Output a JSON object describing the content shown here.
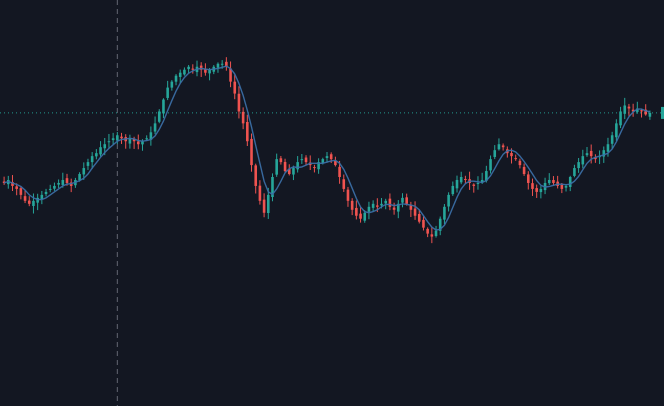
{
  "chart_data": {
    "type": "candlestick",
    "title": "",
    "xlabel": "",
    "ylabel": "",
    "grid": false,
    "colors": {
      "background": "#131722",
      "up": "#26a69a",
      "down": "#ef5350",
      "ma_line": "#3a6ea5",
      "crosshair": "#787b86",
      "price_line": "#26a69a"
    },
    "ylim": [
      0,
      100
    ],
    "overlay": "moving-average",
    "crosshair_index": 27,
    "last_price": 71.5,
    "closes": [
      48,
      49,
      47,
      46,
      44,
      42,
      41,
      42,
      43,
      44,
      45,
      46,
      47,
      48,
      49,
      48,
      47,
      49,
      51,
      53,
      55,
      57,
      58,
      60,
      61,
      62,
      63,
      64,
      63,
      62,
      63,
      62,
      61,
      62,
      63,
      65,
      68,
      72,
      76,
      80,
      82,
      84,
      85,
      86,
      87,
      86,
      87,
      86,
      85,
      86,
      87,
      88,
      88,
      87,
      82,
      78,
      72,
      68,
      62,
      54,
      47,
      42,
      38,
      44,
      50,
      56,
      55,
      52,
      51,
      53,
      55,
      56,
      55,
      54,
      53,
      55,
      56,
      57,
      56,
      54,
      50,
      46,
      42,
      39,
      37,
      36,
      38,
      40,
      41,
      40,
      41,
      42,
      40,
      39,
      41,
      43,
      41,
      39,
      37,
      35,
      33,
      31,
      30,
      32,
      36,
      40,
      44,
      47,
      49,
      50,
      49,
      48,
      47,
      48,
      49,
      52,
      56,
      59,
      61,
      60,
      58,
      57,
      56,
      54,
      51,
      48,
      46,
      45,
      46,
      48,
      49,
      48,
      47,
      46,
      47,
      50,
      53,
      55,
      57,
      58,
      57,
      56,
      57,
      59,
      61,
      64,
      68,
      72,
      74,
      73,
      72,
      73,
      72,
      71,
      71.5
    ]
  }
}
